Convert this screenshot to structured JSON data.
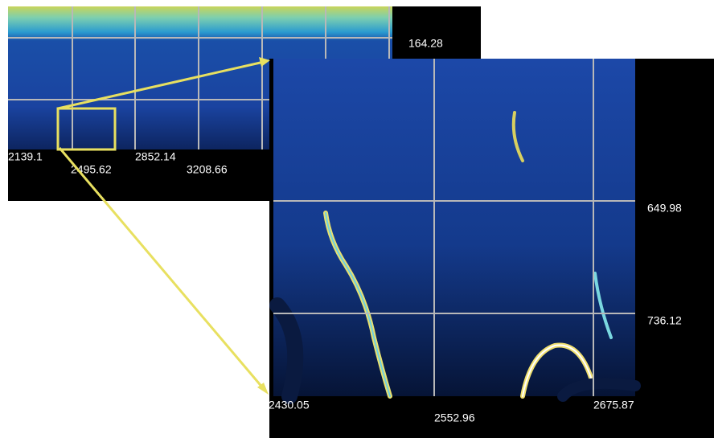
{
  "overview": {
    "x_labels": [
      2139.1,
      2495.62,
      2852.14,
      3208.66
    ],
    "y_labels": [
      164.28
    ]
  },
  "zoom": {
    "x_labels": [
      2430.05,
      2552.96,
      2675.87
    ],
    "y_labels": [
      649.98,
      736.12
    ]
  }
}
